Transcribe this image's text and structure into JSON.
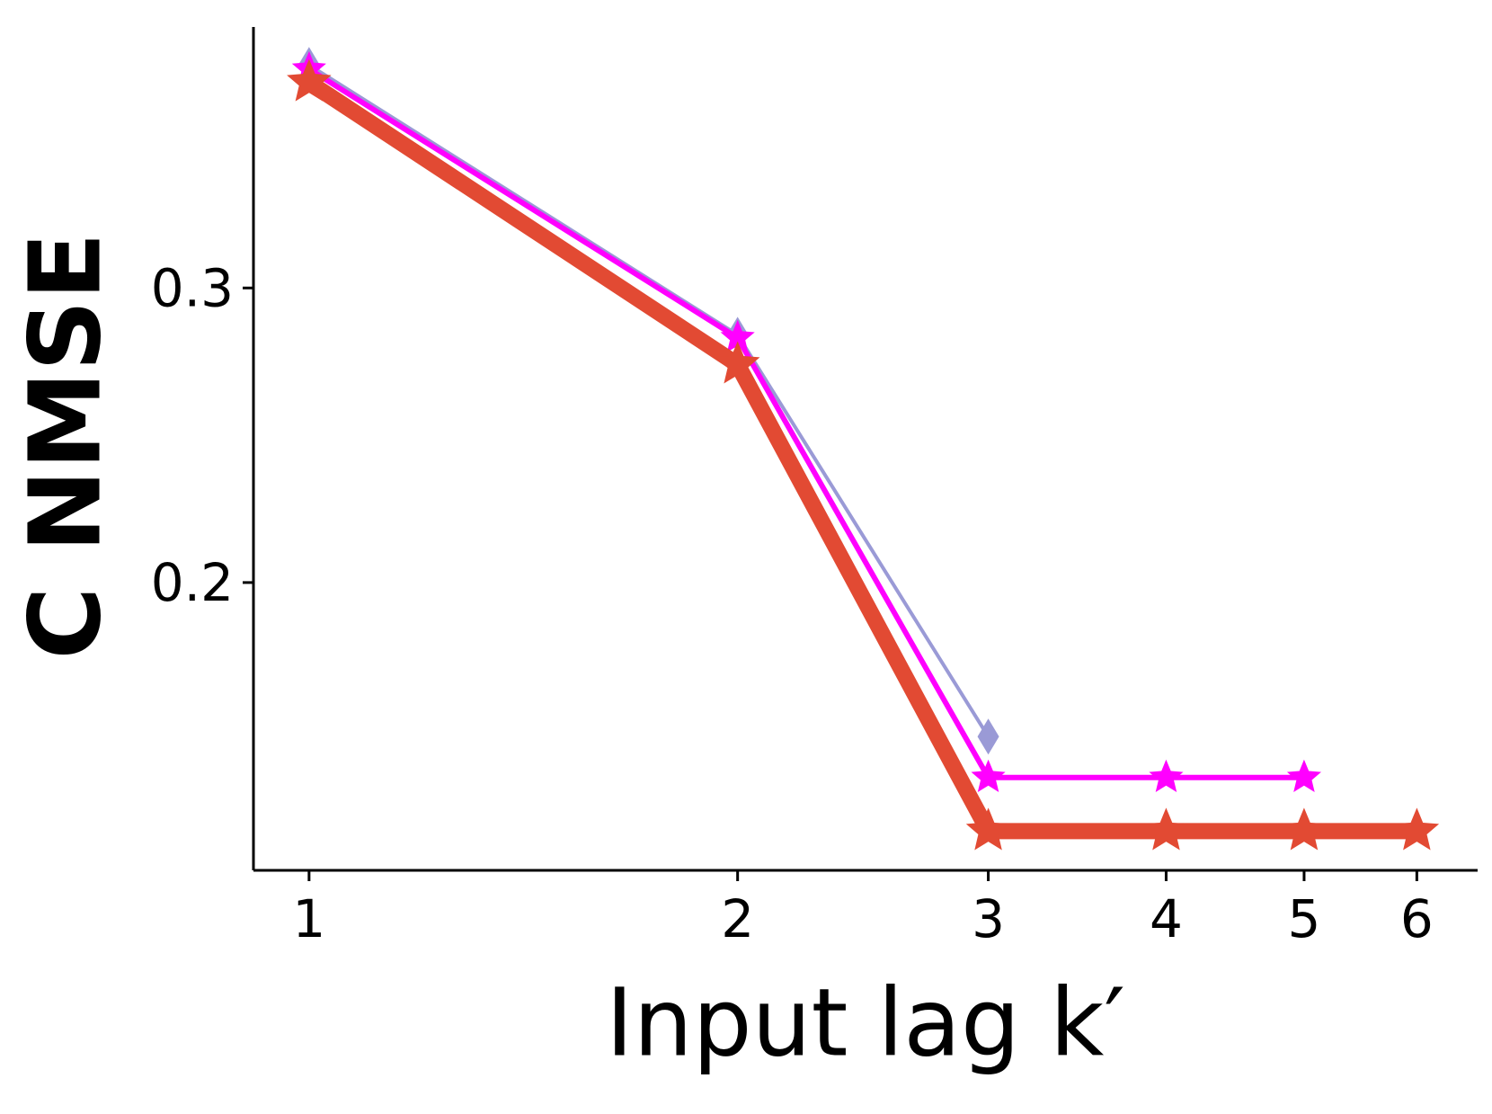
{
  "chart_data": {
    "type": "line",
    "xlabel": "Input lag k′",
    "ylabel": "C NMSE",
    "xscale": "log",
    "xlim": [
      0.914,
      6.62
    ],
    "ylim": [
      0.1023,
      0.3886
    ],
    "xticks": [
      1,
      2,
      3,
      4,
      5,
      6
    ],
    "yticks": [
      0.2,
      0.3
    ],
    "grid": false,
    "series": [
      {
        "color": "#9a9ad6",
        "marker": "diamond",
        "width": 4,
        "x": [
          1,
          2,
          3
        ],
        "values": [
          0.3757,
          0.2841,
          0.1477
        ]
      },
      {
        "color": "#ff00ff",
        "marker": "star",
        "width": 6,
        "x": [
          1,
          2,
          3,
          4,
          5
        ],
        "values": [
          0.3743,
          0.2831,
          0.1338,
          0.1338,
          0.1338
        ]
      },
      {
        "color": "#e24a33",
        "marker": "star",
        "width": 18,
        "x": [
          1,
          2,
          3,
          4,
          5,
          6
        ],
        "values": [
          0.3698,
          0.274,
          0.1156,
          0.1156,
          0.1156,
          0.1156
        ]
      }
    ]
  }
}
